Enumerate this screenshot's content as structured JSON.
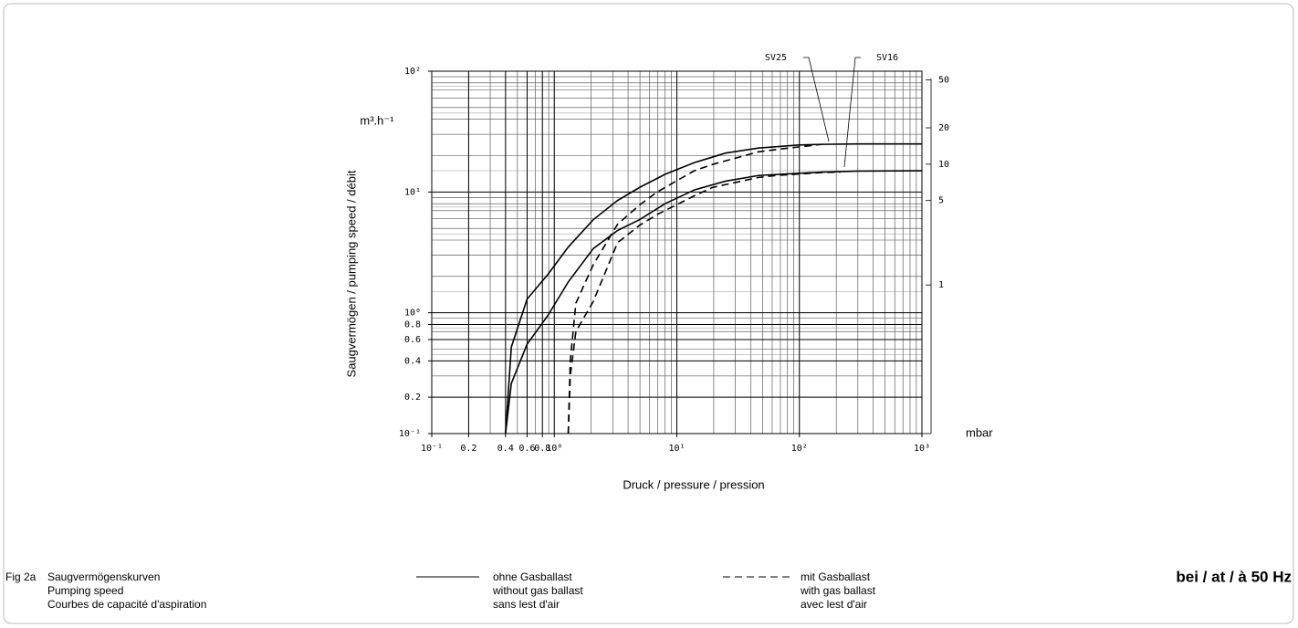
{
  "chart_data": {
    "type": "line",
    "y_unit": "m³.h⁻¹",
    "ylabel": "Saugvermögen / pumping speed / débit",
    "xlabel": "Druck / pressure / pression",
    "x_unit": "mbar",
    "xscale": "log",
    "yscale": "log",
    "grid": true,
    "xlim": [
      0.1,
      1000
    ],
    "xticks": [
      {
        "value": 0.1,
        "label": "10⁻¹"
      },
      0.2,
      0.4,
      0.6,
      0.8,
      {
        "value": 1,
        "label": "10⁰"
      },
      {
        "value": 10,
        "label": "10¹"
      },
      {
        "value": 100,
        "label": "10²"
      },
      {
        "value": 1000,
        "label": "10³"
      }
    ],
    "ylim": [
      0.1,
      100
    ],
    "yticks": [
      {
        "value": 0.1,
        "label": "10⁻¹"
      },
      0.2,
      0.4,
      0.6,
      0.8,
      {
        "value": 1,
        "label": "10⁰"
      },
      {
        "value": 10,
        "label": "10¹"
      },
      {
        "value": 100,
        "label": "10²"
      }
    ],
    "y2lim": [
      0.05886,
      58.86
    ],
    "y2ticks": [
      50,
      20,
      10,
      5,
      1
    ],
    "series": [
      {
        "color": "#000000",
        "dash": false,
        "x": [
          0.4,
          0.446,
          0.6,
          0.887,
          1.3,
          2.08,
          3.28,
          4.96,
          8,
          13.9,
          25,
          46.4,
          100,
          153,
          300,
          1000
        ],
        "values": [
          0.1,
          0.52,
          1.3,
          2.08,
          3.5,
          5.9,
          8.5,
          10.9,
          14,
          17.5,
          21,
          23.1,
          24.5,
          24.8,
          25,
          25
        ]
      },
      {
        "color": "#000000",
        "dash": false,
        "x": [
          0.4,
          0.446,
          0.6,
          0.887,
          1.3,
          2.08,
          3.28,
          4.96,
          8,
          13.9,
          25,
          46.4,
          100,
          153,
          300,
          1000
        ],
        "values": [
          0.1,
          0.26,
          0.55,
          0.95,
          1.8,
          3.4,
          4.8,
          5.9,
          8,
          10.4,
          12.3,
          13.7,
          14.3,
          14.6,
          14.9,
          15
        ]
      },
      {
        "color": "#000000",
        "dash": true,
        "x": [
          1.3,
          1.35,
          1.5,
          2.08,
          3.28,
          4.96,
          6.9,
          13.9,
          19.5,
          46.4,
          65.3,
          153
        ],
        "values": [
          0.1,
          0.4,
          1.2,
          2.5,
          5.4,
          7.8,
          10,
          15,
          16.9,
          21.5,
          22.5,
          24.8
        ]
      },
      {
        "color": "#000000",
        "dash": true,
        "x": [
          1.3,
          1.35,
          1.5,
          2.08,
          3.28,
          4.96,
          6.9,
          13.9,
          19.5,
          46.4,
          65.3,
          153,
          216
        ],
        "values": [
          0.1,
          0.3,
          0.7,
          1.24,
          3.8,
          5.3,
          6.5,
          9.3,
          10.9,
          13.2,
          13.7,
          14.5,
          14.6
        ]
      }
    ],
    "annotations": [
      {
        "text": "SV25"
      },
      {
        "text": "SV16"
      }
    ]
  },
  "caption": {
    "label": "Fig 2a",
    "lines": [
      "Saugvermögenskurven",
      "Pumping speed",
      "Courbes de capacité d'aspiration"
    ]
  },
  "legend": [
    {
      "style": "solid",
      "lines": [
        "ohne Gasballast",
        "without gas ballast",
        "sans lest d'air"
      ]
    },
    {
      "style": "dashed",
      "lines": [
        "mit Gasballast",
        "with gas ballast",
        "avec lest d'air"
      ]
    }
  ],
  "frequency_note": "bei / at / à 50 Hz"
}
